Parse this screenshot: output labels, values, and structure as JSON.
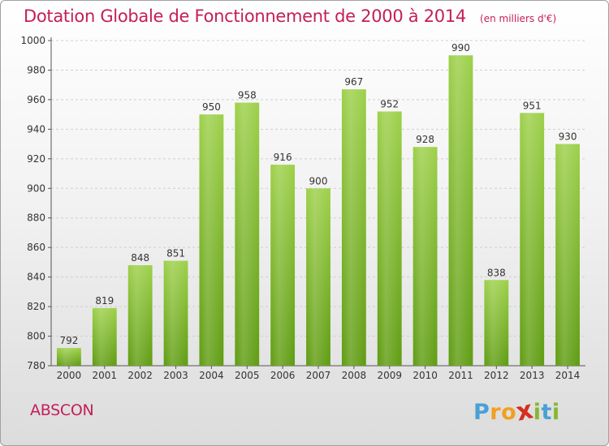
{
  "chart_data": {
    "type": "bar",
    "title": "Dotation Globale de Fonctionnement de 2000 à 2014",
    "subtitle": "(en milliers d'€)",
    "categories": [
      "2000",
      "2001",
      "2002",
      "2003",
      "2004",
      "2005",
      "2006",
      "2007",
      "2008",
      "2009",
      "2010",
      "2011",
      "2012",
      "2013",
      "2014"
    ],
    "values": [
      792,
      819,
      848,
      851,
      950,
      958,
      916,
      900,
      967,
      952,
      928,
      990,
      838,
      951,
      930
    ],
    "ylim": [
      780,
      1000
    ],
    "yticks": [
      780,
      800,
      820,
      840,
      860,
      880,
      900,
      920,
      940,
      960,
      980,
      1000
    ],
    "grid": true,
    "bar_color_top": "#9dd04a",
    "bar_color_bottom": "#5f9c12"
  },
  "footer": {
    "commune": "ABSCON",
    "logo_letters": [
      "P",
      "r",
      "o",
      "x",
      "i",
      "t",
      "i"
    ],
    "logo_colors": [
      "#4aa0d6",
      "#f0a020",
      "#f0a020",
      "#d62d20",
      "#86b830",
      "#4aa0d6",
      "#86b830"
    ]
  },
  "colors": {
    "accent": "#c41e5a"
  }
}
